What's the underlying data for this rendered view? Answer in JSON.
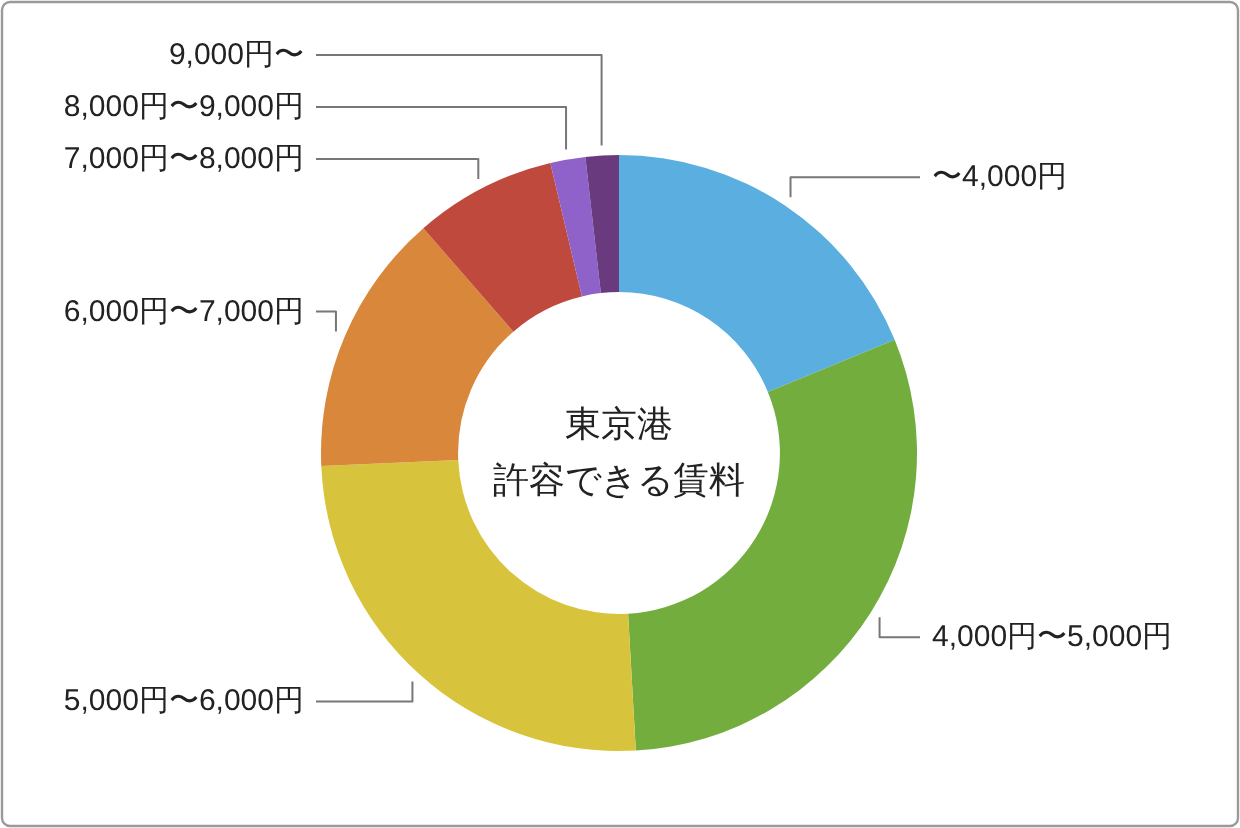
{
  "chart_data": {
    "type": "donut",
    "title": "東京港",
    "subtitle": "許容できる賃料",
    "categories": [
      "〜4,000円",
      "4,000円〜5,000円",
      "5,000円〜6,000円",
      "6,000円〜7,000円",
      "7,000円〜8,000円",
      "8,000円〜9,000円",
      "9,000円〜"
    ],
    "values": [
      18.8,
      30.3,
      25.2,
      14.3,
      7.7,
      1.9,
      1.8
    ],
    "colors": [
      "#5aafe0",
      "#72ad3e",
      "#d8c43c",
      "#d9873a",
      "#c0493e",
      "#8f62c9",
      "#6a3a7e"
    ]
  }
}
